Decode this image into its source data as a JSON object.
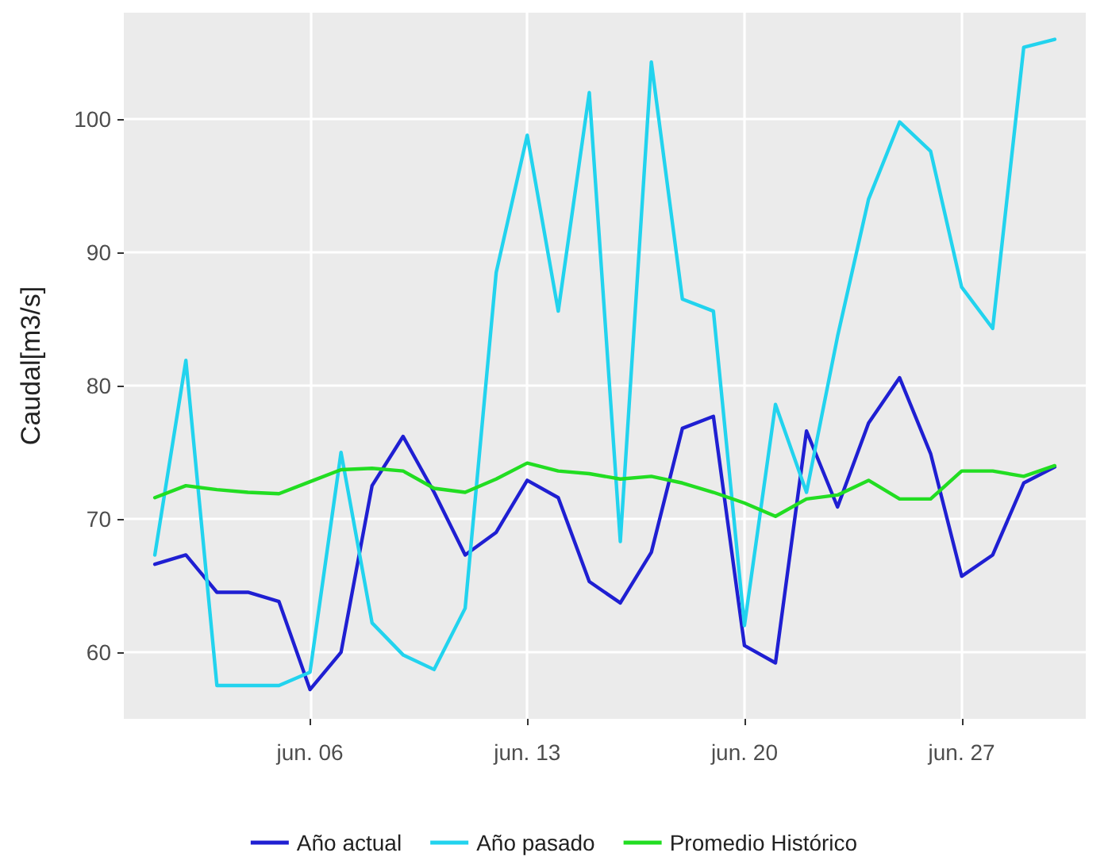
{
  "chart_data": {
    "type": "line",
    "ylabel": "Caudal[m3/s]",
    "x": [
      "--06-01",
      "--06-02",
      "--06-03",
      "--06-04",
      "--06-05",
      "--06-06",
      "--06-07",
      "--06-08",
      "--06-09",
      "--06-10",
      "--06-11",
      "--06-12",
      "--06-13",
      "--06-14",
      "--06-15",
      "--06-16",
      "--06-17",
      "--06-18",
      "--06-19",
      "--06-20",
      "--06-21",
      "--06-22",
      "--06-23",
      "--06-24",
      "--06-25",
      "--06-26",
      "--06-27",
      "--06-28",
      "--06-29",
      "--06-30"
    ],
    "series": [
      {
        "name": "Año actual",
        "color": "#1f1fd2",
        "values": [
          66.6,
          67.3,
          64.5,
          64.5,
          63.8,
          57.2,
          60,
          72.5,
          76.2,
          72,
          67.3,
          69,
          72.9,
          71.6,
          65.3,
          63.7,
          67.5,
          76.8,
          77.7,
          60.5,
          59.2,
          76.6,
          70.9,
          77.2,
          80.6,
          74.9,
          65.7,
          67.3,
          72.7,
          73.9
        ]
      },
      {
        "name": "Año pasado",
        "color": "#22d3ee",
        "values": [
          67.3,
          81.9,
          57.5,
          57.5,
          57.5,
          58.5,
          75,
          62.2,
          59.8,
          58.7,
          63.3,
          88.5,
          98.8,
          85.6,
          102,
          68.3,
          104.3,
          86.5,
          85.6,
          62,
          78.6,
          72,
          83.7,
          94,
          99.8,
          97.6,
          87.4,
          84.3,
          105.4,
          106
        ]
      },
      {
        "name": "Promedio Histórico",
        "color": "#22dd22",
        "values": [
          71.6,
          72.5,
          72.2,
          72,
          71.9,
          72.8,
          73.7,
          73.8,
          73.6,
          72.3,
          72,
          73,
          74.2,
          73.6,
          73.4,
          73,
          73.2,
          72.7,
          72,
          71.2,
          70.2,
          71.5,
          71.8,
          72.9,
          71.5,
          71.5,
          73.6,
          73.6,
          73.2,
          74
        ]
      }
    ],
    "xlim": [
      "--05-31",
      "--07-01"
    ],
    "xticks": [
      {
        "value": "--06-06",
        "label": "jun. 06"
      },
      {
        "value": "--06-13",
        "label": "jun. 13"
      },
      {
        "value": "--06-20",
        "label": "jun. 20"
      },
      {
        "value": "--06-27",
        "label": "jun. 27"
      }
    ],
    "ylim": [
      55,
      108
    ],
    "yticks": [
      60,
      70,
      80,
      90,
      100
    ],
    "grid": true,
    "legend": "bottom",
    "marker": "none",
    "line_style": "solid"
  }
}
